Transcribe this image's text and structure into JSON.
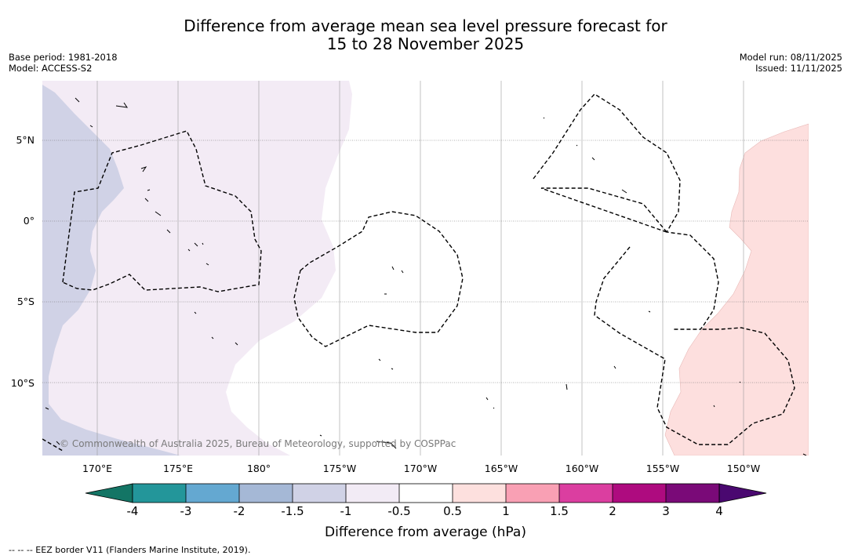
{
  "title": {
    "line1": "Difference from average mean sea level pressure forecast for",
    "line2": "15 to 28 November 2025"
  },
  "meta_left": {
    "base_period": "Base period: 1981-2018",
    "model": "Model: ACCESS-S2"
  },
  "meta_right": {
    "model_run": "Model run: 08/11/2025",
    "issued": "Issued: 11/11/2025"
  },
  "latitude_labels": [
    "5°N",
    "0°",
    "5°S",
    "10°S"
  ],
  "longitude_labels": [
    "170°E",
    "175°E",
    "180°",
    "175°W",
    "170°W",
    "165°W",
    "160°W",
    "155°W",
    "150°W"
  ],
  "copyright": "© Commonwealth of Australia 2025, Bureau of Meteorology, supported by COSPPac",
  "colorbar": {
    "title": "Difference from average (hPa)",
    "tick_labels": [
      "-4",
      "-3",
      "-2",
      "-1.5",
      "-1",
      "-0.5",
      "0.5",
      "1",
      "1.5",
      "2",
      "3",
      "4"
    ],
    "colors": [
      "#137565",
      "#23969a",
      "#64a8d1",
      "#a5b8d6",
      "#d0d2e6",
      "#f2ebf5",
      "#ffffff",
      "#fde0de",
      "#f9a0b4",
      "#db3ea0",
      "#ae0b7f",
      "#7a0a78",
      "#4a0870"
    ]
  },
  "footnote": "--  --  -- EEZ border V11 (Flanders Marine Institute, 2019)."
}
